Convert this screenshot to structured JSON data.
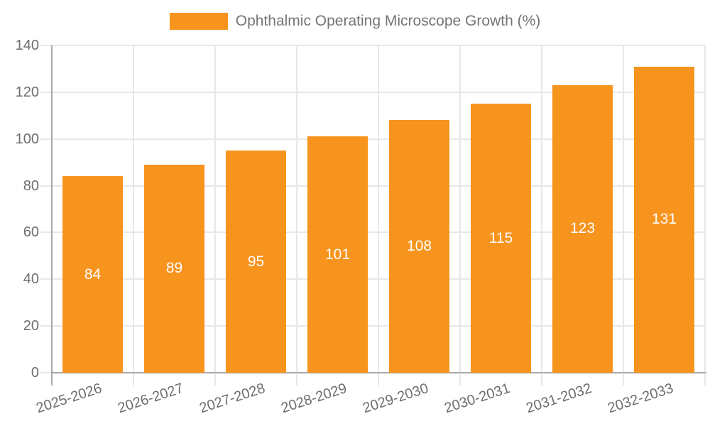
{
  "legend": {
    "label": "Ophthalmic Operating Microscope Growth (%)",
    "swatch_color": "#F7941E"
  },
  "chart_data": {
    "type": "bar",
    "title": "",
    "series_name": "Ophthalmic Operating Microscope Growth (%)",
    "categories": [
      "2025-2026",
      "2026-2027",
      "2027-2028",
      "2028-2029",
      "2029-2030",
      "2030-2031",
      "2031-2032",
      "2032-2033"
    ],
    "values": [
      84,
      89,
      95,
      101,
      108,
      115,
      123,
      131
    ],
    "ylim": [
      0,
      140
    ],
    "yticks": [
      0,
      20,
      40,
      60,
      80,
      100,
      120,
      140
    ],
    "grid": true,
    "legend_position": "top-center",
    "bar_color": "#F7941E",
    "value_label_color": "#FFFFFF",
    "colors": {
      "gridline": "#E7E7E7",
      "axis": "#A9A9A9",
      "tick_text": "#6E6E6E",
      "legend_text": "#757575"
    }
  }
}
